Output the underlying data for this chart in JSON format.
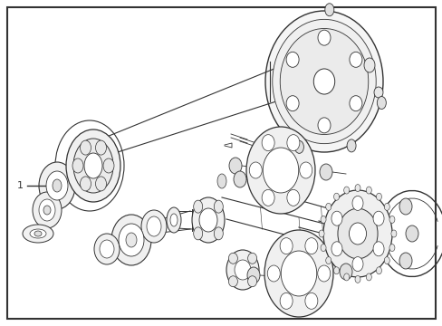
{
  "bg_color": "#ffffff",
  "border_color": "#333333",
  "line_color": "#333333",
  "fig_width": 4.89,
  "fig_height": 3.6,
  "dpi": 100
}
